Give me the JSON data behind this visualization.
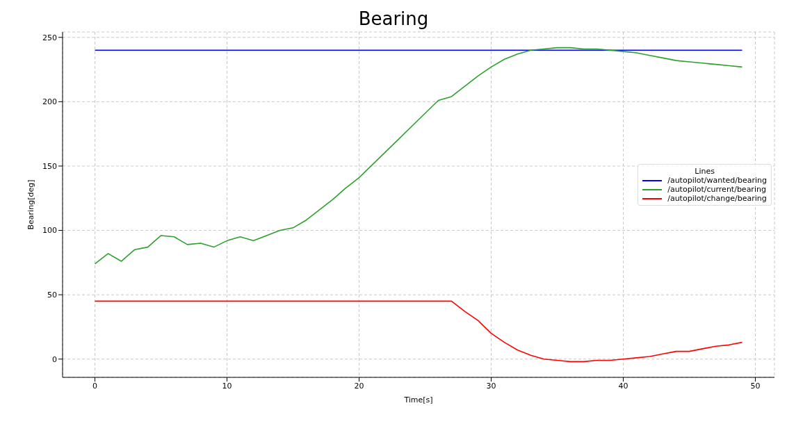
{
  "chart_data": {
    "type": "line",
    "title": "Bearing",
    "xlabel": "Time[s]",
    "ylabel": "Bearing[deg]",
    "legend_title": "Lines",
    "legend": "right",
    "grid": true,
    "line_style": "solid",
    "marker": "none",
    "x": [
      0,
      1,
      2,
      3,
      4,
      5,
      6,
      7,
      8,
      9,
      10,
      11,
      12,
      13,
      14,
      15,
      16,
      17,
      18,
      19,
      20,
      21,
      22,
      23,
      24,
      25,
      26,
      27,
      28,
      29,
      30,
      31,
      32,
      33,
      34,
      35,
      36,
      37,
      38,
      39,
      40,
      41,
      42,
      43,
      44,
      45,
      46,
      47,
      48,
      49
    ],
    "xlim": [
      -2.45,
      51.45
    ],
    "xticks": [
      0,
      10,
      20,
      30,
      40,
      50
    ],
    "ylim": [
      -14.2,
      254.2
    ],
    "yticks": [
      0,
      50,
      100,
      150,
      200,
      250
    ],
    "series": [
      {
        "name": "/autopilot/wanted/bearing",
        "color": "#0000ff",
        "values": [
          240,
          240,
          240,
          240,
          240,
          240,
          240,
          240,
          240,
          240,
          240,
          240,
          240,
          240,
          240,
          240,
          240,
          240,
          240,
          240,
          240,
          240,
          240,
          240,
          240,
          240,
          240,
          240,
          240,
          240,
          240,
          240,
          240,
          240,
          240,
          240,
          240,
          240,
          240,
          240,
          240,
          240,
          240,
          240,
          240,
          240,
          240,
          240,
          240,
          240
        ]
      },
      {
        "name": "/autopilot/current/bearing",
        "color": "#2ca02c",
        "values": [
          74,
          82,
          76,
          85,
          87,
          96,
          95,
          89,
          90,
          87,
          92,
          95,
          92,
          96,
          100,
          102,
          108,
          116,
          124,
          133,
          141,
          151,
          161,
          171,
          181,
          191,
          201,
          204,
          212,
          220,
          227,
          233,
          237,
          240,
          241,
          242,
          242,
          241,
          241,
          240,
          239,
          238,
          236,
          234,
          232,
          231,
          230,
          229,
          228,
          227
        ]
      },
      {
        "name": "/autopilot/change/bearing",
        "color": "#ff0000",
        "values": [
          45,
          45,
          45,
          45,
          45,
          45,
          45,
          45,
          45,
          45,
          45,
          45,
          45,
          45,
          45,
          45,
          45,
          45,
          45,
          45,
          45,
          45,
          45,
          45,
          45,
          45,
          45,
          45,
          37,
          30,
          20,
          13,
          7,
          3,
          0,
          -1,
          -2,
          -2,
          -1,
          -1,
          0,
          1,
          2,
          4,
          6,
          6,
          8,
          10,
          11,
          13
        ]
      }
    ]
  }
}
